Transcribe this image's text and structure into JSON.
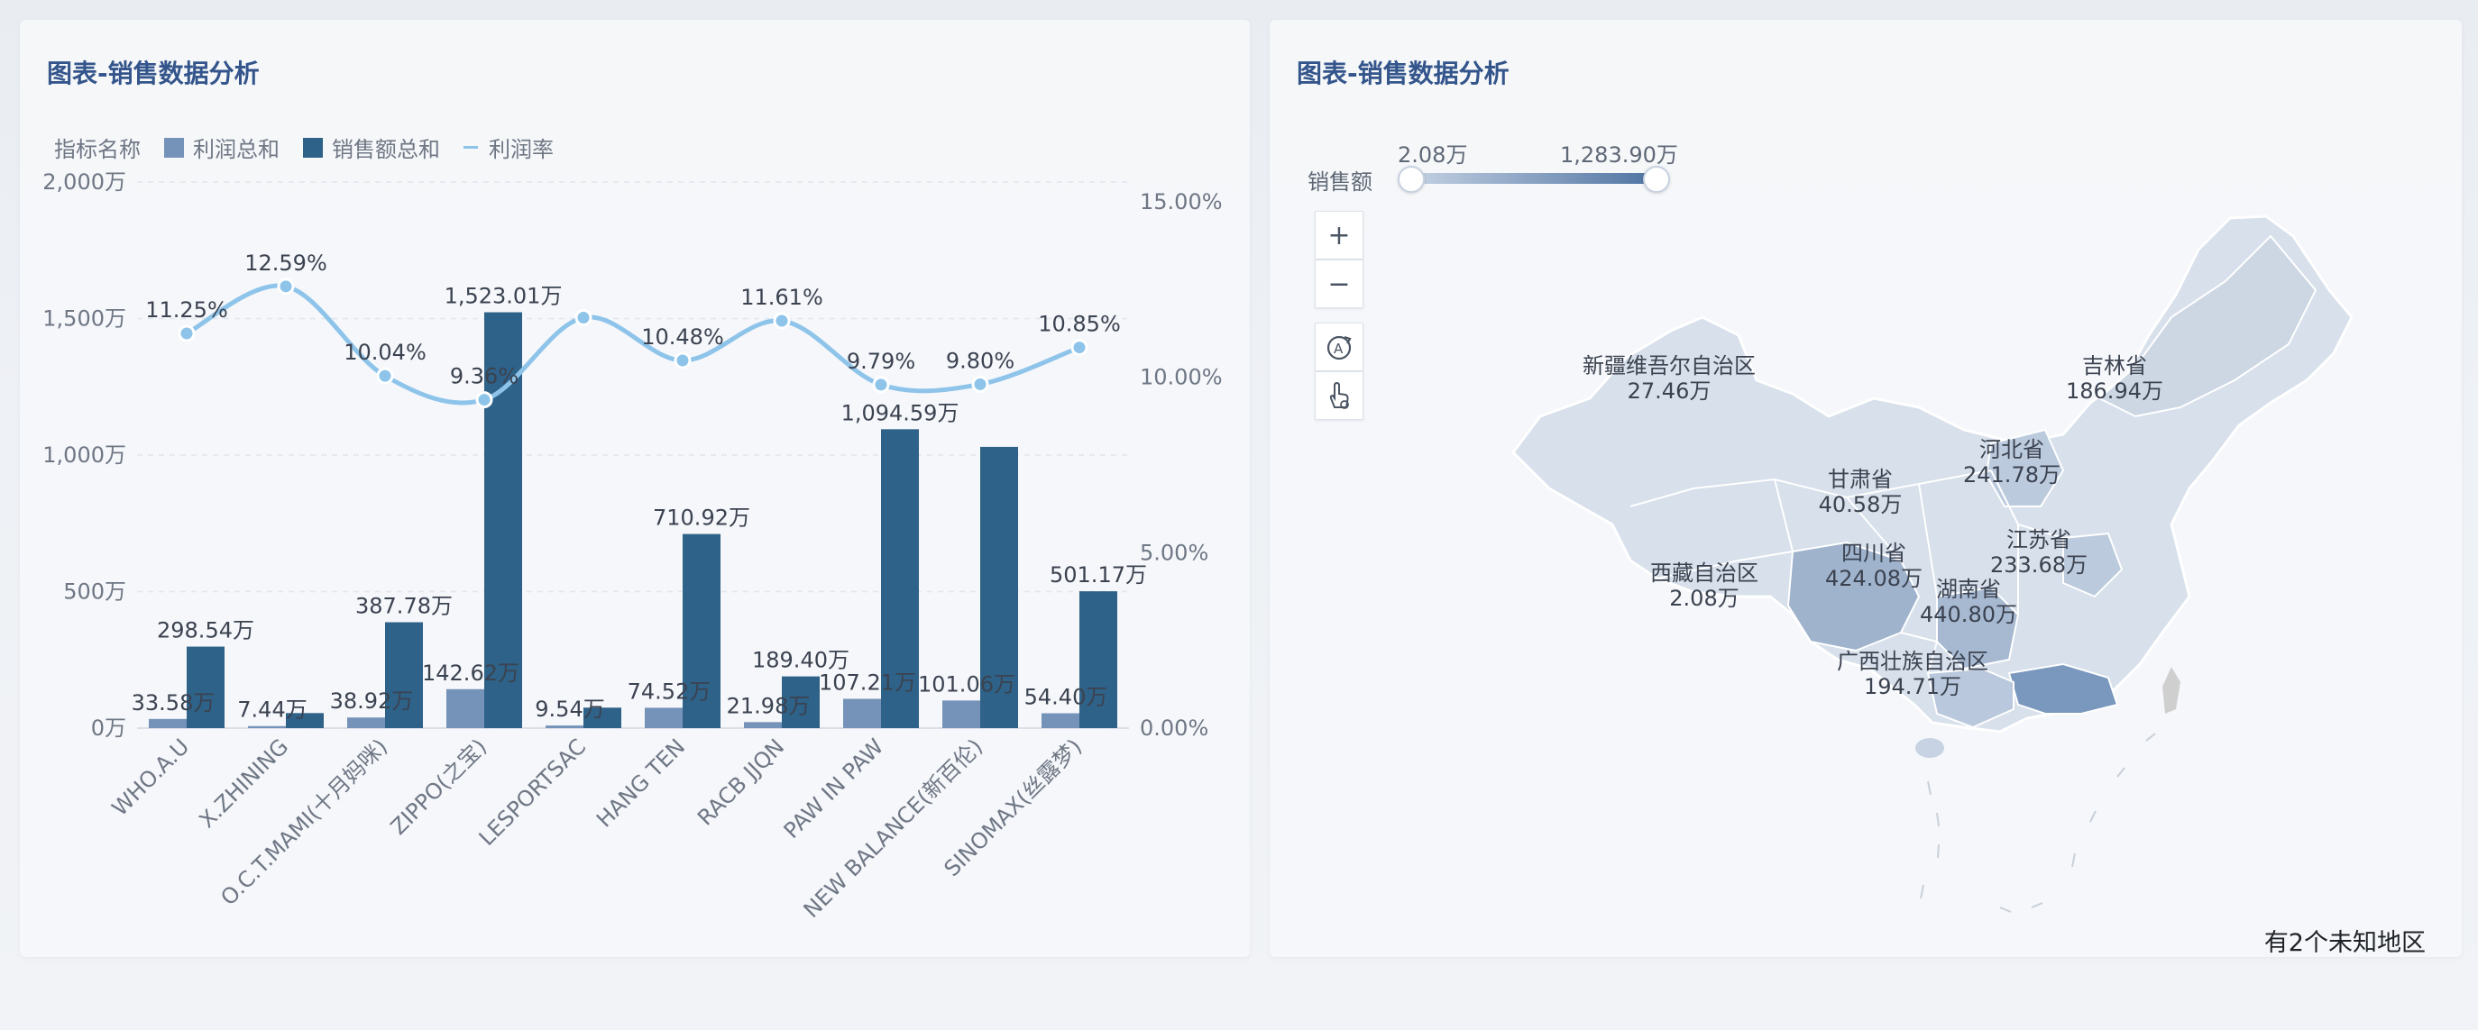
{
  "left_panel": {
    "title": "图表-销售数据分析",
    "legend_title": "指标名称"
  },
  "right_panel": {
    "title": "图表-销售数据分析",
    "visual_map": {
      "label": "销售额",
      "min_label": "2.08万",
      "max_label": "1,283.90万",
      "color_low": "#c5d2e3",
      "color_high": "#4f73a2"
    },
    "controls": {
      "zoom_in": "+",
      "zoom_out": "−"
    },
    "unknown_note": "有2个未知地区",
    "regions": [
      {
        "name": "新疆维吾尔自治区",
        "value": "27.46万"
      },
      {
        "name": "吉林省",
        "value": "186.94万"
      },
      {
        "name": "河北省",
        "value": "241.78万"
      },
      {
        "name": "甘肃省",
        "value": "40.58万"
      },
      {
        "name": "江苏省",
        "value": "233.68万"
      },
      {
        "name": "四川省",
        "value": "424.08万"
      },
      {
        "name": "西藏自治区",
        "value": "2.08万"
      },
      {
        "name": "湖南省",
        "value": "440.80万"
      },
      {
        "name": "广西壮族自治区",
        "value": "194.71万"
      }
    ]
  },
  "chart_data": {
    "type": "bar",
    "title": "图表-销售数据分析",
    "categories": [
      "WHO.A.U",
      "X.ZHINING",
      "O.C.T.MAMI(十月妈咪)",
      "ZIPPO(之宝)",
      "LESPORTSAC",
      "HANG TEN",
      "RACB JJQN",
      "PAW IN PAW",
      "NEW BALANCE(新百伦)",
      "SINOMAX(丝露梦)"
    ],
    "series": [
      {
        "name": "利润总和",
        "type": "bar",
        "axis": "left",
        "color": "#7592b8",
        "values": [
          33.58,
          7.44,
          38.92,
          142.62,
          9.54,
          74.52,
          21.98,
          107.21,
          101.06,
          54.4
        ],
        "labels": [
          "33.58万",
          "7.44万",
          "38.92万",
          "142.62万",
          "9.54万",
          "74.52万",
          "21.98万",
          "107.21万",
          "101.06万",
          "54.40万"
        ]
      },
      {
        "name": "销售额总和",
        "type": "bar",
        "axis": "left",
        "color": "#2e6288",
        "values": [
          298.54,
          55,
          387.78,
          1523.01,
          75,
          710.92,
          189.4,
          1094.59,
          1030,
          501.17
        ],
        "labels": [
          "298.54万",
          "",
          "387.78万",
          "1,523.01万",
          "",
          "710.92万",
          "189.40万",
          "1,094.59万",
          "",
          "501.17万"
        ]
      },
      {
        "name": "利润率",
        "type": "line",
        "axis": "right",
        "color": "#8ec4ea",
        "values": [
          11.25,
          12.59,
          10.04,
          9.36,
          11.7,
          10.48,
          11.61,
          9.79,
          9.8,
          10.85
        ],
        "labels": [
          "11.25%",
          "12.59%",
          "10.04%",
          "9.36%",
          "",
          "10.48%",
          "11.61%",
          "9.79%",
          "9.80%",
          "10.85%"
        ]
      }
    ],
    "y_left": {
      "ticks": [
        0,
        500,
        1000,
        1500,
        2000
      ],
      "tick_labels": [
        "0万",
        "500万",
        "1,000万",
        "1,500万",
        "2,000万"
      ],
      "ylim": [
        0,
        2000
      ]
    },
    "y_right": {
      "ticks": [
        0,
        5,
        10,
        15
      ],
      "tick_labels": [
        "0.00%",
        "5.00%",
        "10.00%",
        "15.00%"
      ],
      "ylim": [
        0,
        15
      ]
    },
    "grid": true,
    "legend_position": "top-left"
  }
}
